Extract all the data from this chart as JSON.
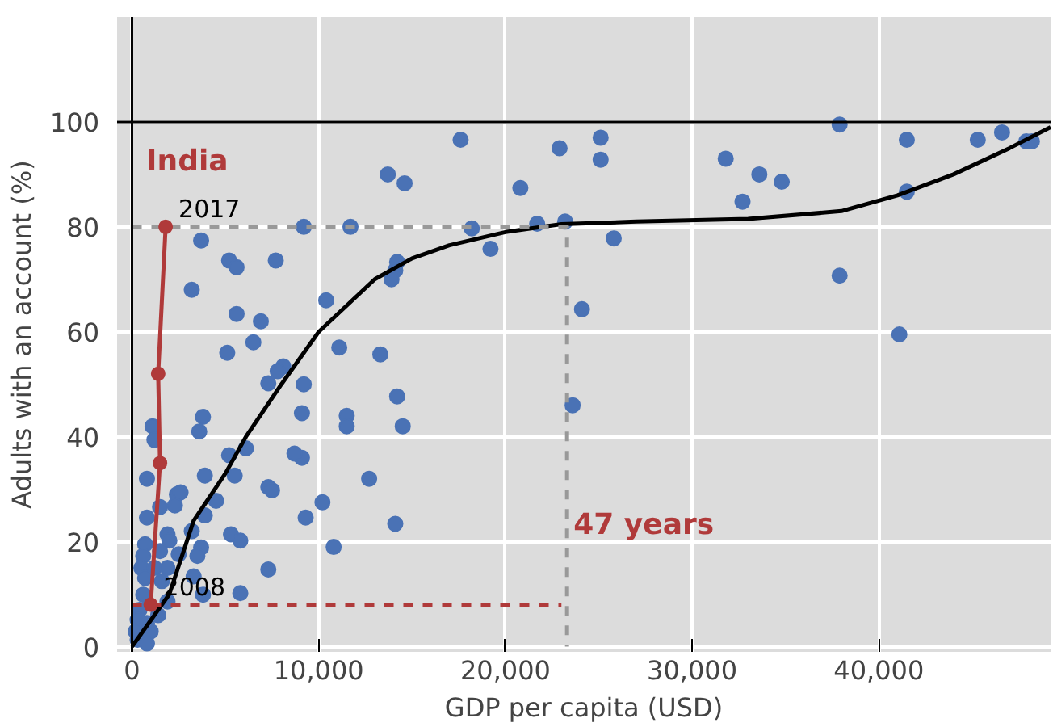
{
  "chart_data": {
    "type": "scatter",
    "xlabel": "GDP per capita (USD)",
    "ylabel": "Adults with an account (%)",
    "xlim": [
      -800,
      49200
    ],
    "ylim": [
      -1,
      120
    ],
    "xticks": [
      {
        "value": 0,
        "label": "0"
      },
      {
        "value": 10000,
        "label": "10,000"
      },
      {
        "value": 20000,
        "label": "20,000"
      },
      {
        "value": 30000,
        "label": "30,000"
      },
      {
        "value": 40000,
        "label": "40,000"
      }
    ],
    "yticks": [
      0,
      20,
      40,
      60,
      80,
      100
    ],
    "grid": true,
    "ref_lines": [
      {
        "axis": "y",
        "value": 100,
        "color": "#000000"
      },
      {
        "axis": "x",
        "value": 0,
        "color": "#000000"
      }
    ],
    "annotations": [
      {
        "text": "2017",
        "x": 1800,
        "y": 80
      },
      {
        "text": "2008",
        "x": 1000,
        "y": 8
      },
      {
        "text": "47 years",
        "x": 23300,
        "y": 20
      }
    ],
    "series": [
      {
        "color": "#4a72b5",
        "marker": "circle",
        "x": [
          17600,
          22900,
          25100,
          25100,
          31800,
          33600,
          34800,
          32700,
          37900,
          41500,
          45300,
          46600,
          47900,
          48200,
          41500,
          37900,
          41100,
          20800,
          18200,
          19200,
          21700,
          23200,
          25800,
          24100,
          23600,
          13700,
          14600,
          14200,
          14100,
          13900,
          11700,
          9200,
          10400,
          11100,
          13300,
          14200,
          14500,
          11500,
          11500,
          9200,
          10200,
          9100,
          9300,
          10800,
          12700,
          14100,
          3700,
          5200,
          5600,
          7700,
          3200,
          5600,
          6900,
          6500,
          5100,
          8100,
          7800,
          7300,
          9100,
          3800,
          3600,
          1100,
          1200,
          5200,
          6100,
          5500,
          3900,
          8700,
          7300,
          7500,
          4500,
          2400,
          2600,
          2300,
          800,
          3900,
          1500,
          800,
          3200,
          1900,
          2000,
          3700,
          5300,
          5800,
          700,
          600,
          1500,
          2500,
          3500,
          500,
          1200,
          1900,
          3300,
          700,
          1600,
          7300,
          5800,
          3800,
          600,
          1900,
          400,
          1400,
          300,
          800,
          200,
          1000,
          300,
          800
        ],
        "values": [
          96.6,
          95,
          97,
          92.8,
          93,
          90,
          88.6,
          84.8,
          99.5,
          96.6,
          96.6,
          98,
          96.3,
          96.3,
          86.7,
          70.7,
          59.5,
          87.4,
          79.7,
          75.8,
          80.6,
          81,
          77.8,
          64.3,
          46,
          90,
          88.3,
          73.3,
          71.7,
          70,
          80,
          80,
          66,
          57,
          55.7,
          47.7,
          42,
          44,
          42,
          50,
          27.5,
          36,
          24.6,
          19,
          32,
          23.4,
          77.4,
          73.6,
          72.3,
          73.6,
          68,
          63.4,
          62,
          58,
          56,
          53.4,
          52.5,
          50.2,
          44.5,
          43.8,
          41,
          42,
          39.4,
          36.5,
          37.8,
          32.6,
          32.6,
          36.8,
          30.4,
          29.8,
          27.8,
          29,
          29.4,
          26.9,
          32,
          25,
          26.6,
          24.6,
          22,
          21.4,
          20.2,
          18.9,
          21.4,
          20.2,
          19.5,
          17.3,
          18.2,
          17.6,
          17.3,
          15,
          15,
          15,
          13.4,
          13.1,
          12.5,
          14.7,
          10.2,
          9.9,
          9.9,
          8.6,
          7,
          6,
          5.1,
          4.5,
          2.9,
          2.9,
          1.3,
          0.6
        ]
      },
      {
        "type": "line",
        "color": "#000000",
        "line_style": "solid",
        "x": [
          0,
          2000,
          3300,
          5000,
          6100,
          8000,
          10000,
          13000,
          15000,
          17000,
          20000,
          23000,
          27000,
          33000,
          38000,
          41000,
          44000,
          47000,
          49200
        ],
        "values": [
          0,
          10,
          24,
          33,
          40,
          50,
          60,
          70,
          74,
          76.5,
          79,
          80.5,
          81,
          81.5,
          83,
          86,
          90,
          95,
          99
        ]
      },
      {
        "type": "line",
        "color": "#999999",
        "line_style": "dashed",
        "x": [
          0,
          23300,
          23300
        ],
        "values": [
          80,
          80,
          0
        ]
      },
      {
        "type": "line",
        "color": "#b03a3a",
        "line_style": "dashed",
        "x": [
          0,
          23000
        ],
        "values": [
          8,
          8
        ]
      },
      {
        "type": "line",
        "name": "India",
        "color": "#b03a3a",
        "line_style": "solid",
        "marker": "circle",
        "x": [
          1000,
          1500,
          1400,
          1800
        ],
        "values": [
          8,
          35,
          52,
          80
        ]
      }
    ]
  }
}
